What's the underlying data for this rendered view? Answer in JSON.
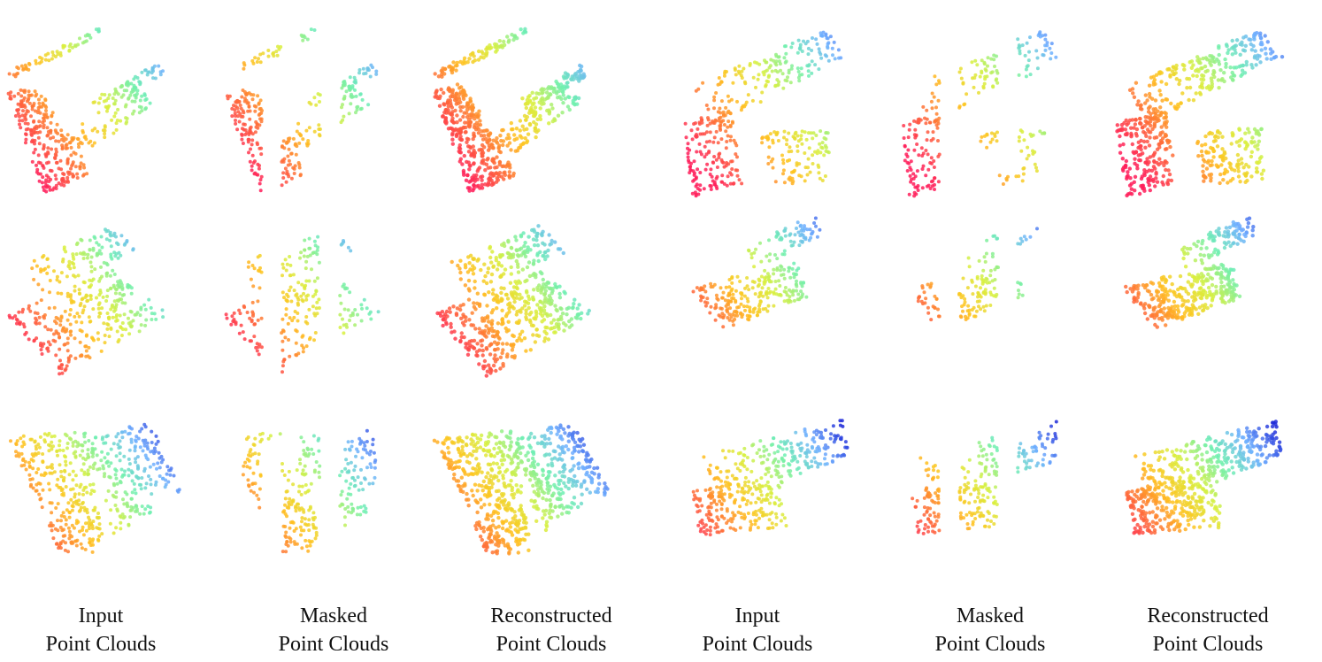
{
  "captions": [
    {
      "line1": "Input",
      "line2": "Point Clouds"
    },
    {
      "line1": "Masked",
      "line2": "Point Clouds"
    },
    {
      "line1": "Reconstructed",
      "line2": "Point Clouds"
    },
    {
      "line1": "Input",
      "line2": "Point Clouds"
    },
    {
      "line1": "Masked",
      "line2": "Point Clouds"
    },
    {
      "line1": "Reconstructed",
      "line2": "Point Clouds"
    }
  ],
  "colormap": [
    "#ff1f5a",
    "#ff6a3a",
    "#ffc21f",
    "#d8f040",
    "#6ff0b0",
    "#6fb0ff",
    "#1f2ad8"
  ],
  "point_clouds": {
    "rows": 3,
    "columns": [
      "input",
      "masked",
      "reconstructed",
      "input",
      "masked",
      "reconstructed"
    ],
    "mask_ratio": 0.4
  }
}
